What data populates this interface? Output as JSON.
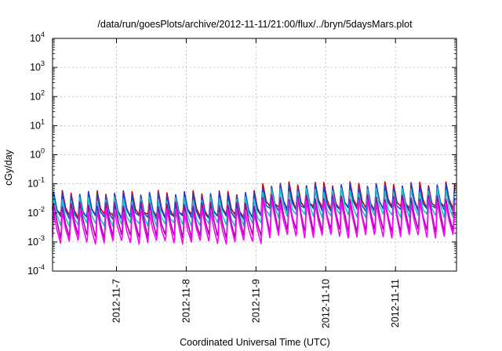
{
  "chart_data": {
    "type": "line",
    "title": "/data/run/goesPlots/archive/2012-11-11/21:00/flux/../bryn/5daysMars.plot",
    "xlabel": "Coordinated Universal Time (UTC)",
    "ylabel": "cGy/day",
    "yscale": "log",
    "ylim": [
      0.0001,
      10000
    ],
    "y_ticks": [
      {
        "value": 0.0001,
        "base": "10",
        "exp": "-4"
      },
      {
        "value": 0.001,
        "base": "10",
        "exp": "-3"
      },
      {
        "value": 0.01,
        "base": "10",
        "exp": "-2"
      },
      {
        "value": 0.1,
        "base": "10",
        "exp": "-1"
      },
      {
        "value": 1,
        "base": "10",
        "exp": "0"
      },
      {
        "value": 10,
        "base": "10",
        "exp": "1"
      },
      {
        "value": 100,
        "base": "10",
        "exp": "2"
      },
      {
        "value": 1000,
        "base": "10",
        "exp": "3"
      },
      {
        "value": 10000,
        "base": "10",
        "exp": "4"
      }
    ],
    "xlim": [
      "2012-11-06 02:00",
      "2012-11-11 21:00"
    ],
    "x_ticks": [
      {
        "value": "2012-11-07 00:00",
        "label": "2012-11-7"
      },
      {
        "value": "2012-11-08 00:00",
        "label": "2012-11-8"
      },
      {
        "value": "2012-11-09 00:00",
        "label": "2012-11-9"
      },
      {
        "value": "2012-11-10 00:00",
        "label": "2012-11-10"
      },
      {
        "value": "2012-11-11 00:00",
        "label": "2012-11-11"
      }
    ],
    "grid": true,
    "cycle_hours": 3,
    "series": [
      {
        "color": "#cc0000",
        "peak_values": [
          0.05,
          0.1
        ],
        "trough_values": [
          0.008,
          0.015
        ]
      },
      {
        "color": "#1f3fd6",
        "peak_values": [
          0.045,
          0.085
        ],
        "trough_values": [
          0.007,
          0.013
        ]
      },
      {
        "color": "#19c4c4",
        "peak_values": [
          0.03,
          0.06
        ],
        "trough_values": [
          0.004,
          0.008
        ]
      },
      {
        "color": "#a000a0",
        "peak_values": [
          0.02,
          0.035
        ],
        "trough_values": [
          0.0016,
          0.0025
        ]
      },
      {
        "color": "#ff00ff",
        "peak_values": [
          0.012,
          0.025
        ],
        "trough_values": [
          0.001,
          0.0016
        ]
      }
    ]
  }
}
